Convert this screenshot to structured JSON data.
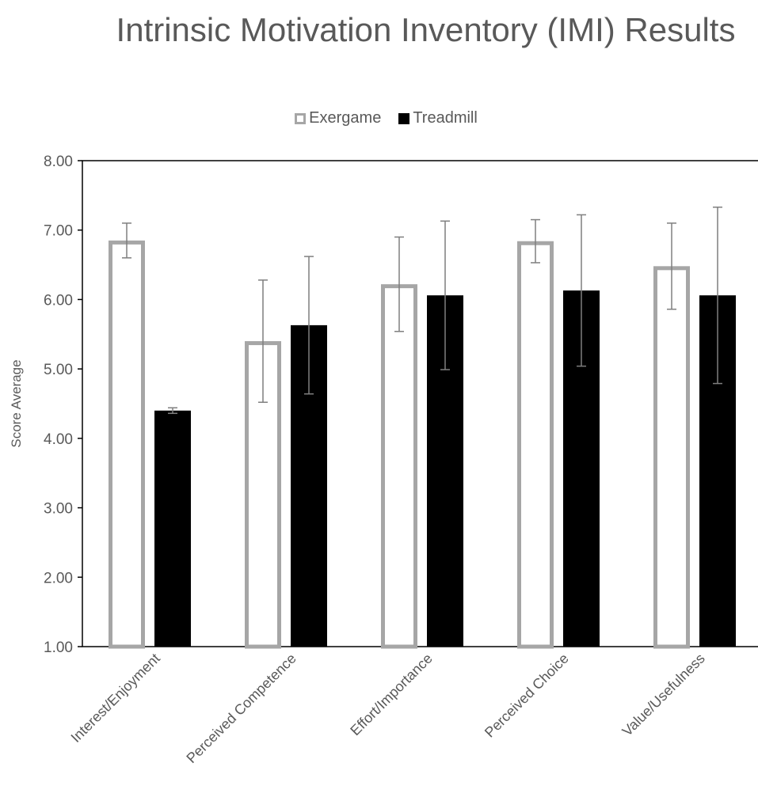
{
  "chart_data": {
    "type": "bar",
    "title": "Intrinsic Motivation Inventory (IMI) Results",
    "xlabel": "",
    "ylabel": "Score Average",
    "ylim": [
      1.0,
      8.0
    ],
    "y_ticks": [
      "1.00",
      "2.00",
      "3.00",
      "4.00",
      "5.00",
      "6.00",
      "7.00",
      "8.00"
    ],
    "categories": [
      "Interest/Enjoyment",
      "Perceived Competence",
      "Effort/Importance",
      "Perceived Choice",
      "Value/Usefulness"
    ],
    "series": [
      {
        "name": "Exergame",
        "values": [
          6.85,
          5.4,
          6.22,
          6.84,
          6.48
        ],
        "error": [
          0.25,
          0.88,
          0.68,
          0.31,
          0.62
        ],
        "color": "#a6a6a6",
        "style": "outline"
      },
      {
        "name": "Treadmill",
        "values": [
          4.4,
          5.63,
          6.06,
          6.13,
          6.06
        ],
        "error": [
          0.04,
          0.99,
          1.07,
          1.09,
          1.27
        ],
        "color": "#000000",
        "style": "filled"
      }
    ],
    "legend": "top-center",
    "grid": false
  }
}
